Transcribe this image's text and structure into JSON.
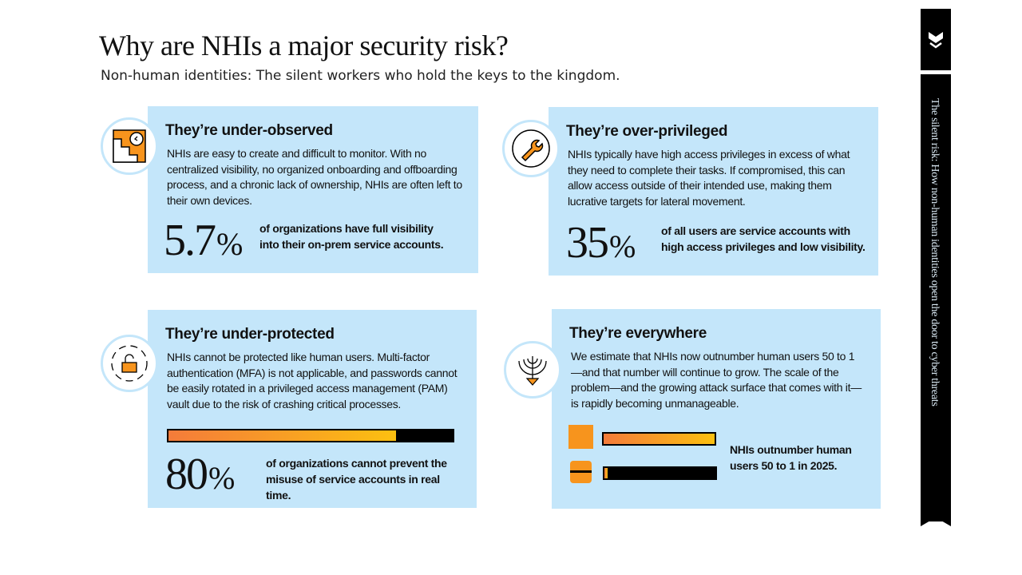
{
  "header": {
    "title": "Why are NHIs a major security risk?",
    "subtitle": "Non-human identities: The silent workers who hold the keys to the kingdom."
  },
  "cards": [
    {
      "title": "They’re under-observed",
      "body": "NHIs are easy to create and difficult to monitor. With no centralized visibility, no organized onboarding and offboarding process, and a chronic lack of ownership, NHIs are often left to their own devices.",
      "stat_value": "5.7",
      "stat_unit": "%",
      "stat_text": "of organizations have full visibility into their on-prem service accounts.",
      "icon": "stairs-clock-icon"
    },
    {
      "title": "They’re over-privileged",
      "body": "NHIs typically have high access privileges in excess of what they need to complete their tasks. If compromised, this can allow access outside of their intended use, making them lucrative targets for lateral movement.",
      "stat_value": "35",
      "stat_unit": "%",
      "stat_text": "of all users are service accounts with high access privileges and low visibility.",
      "icon": "wrench-icon"
    },
    {
      "title": "They’re under-protected",
      "body": "NHIs cannot be protected like human users. Multi-factor authentication (MFA) is not applicable, and passwords cannot be easily rotated in a privileged access management (PAM) vault due to the risk of crashing critical processes.",
      "stat_value": "80",
      "stat_unit": "%",
      "stat_text": "of organizations cannot prevent the misuse of service accounts in real time.",
      "progress_percent": 80,
      "icon": "unlock-icon"
    },
    {
      "title": "They’re everywhere",
      "body": "We estimate that NHIs now outnumber human users 50 to 1—and that number will continue to grow. The scale of the problem—and the growing attack surface that comes with it—is rapidly becoming unmanageable.",
      "stat_text": "NHIs outnumber human users 50 to 1 in 2025.",
      "nhi_bar_percent": 100,
      "human_bar_percent": 2,
      "icon": "antenna-icon"
    }
  ],
  "sidebar": {
    "title": "The silent risk: How non-human identities open the door to cyber threats",
    "icon": "chevron-double-down-icon"
  },
  "colors": {
    "card_bg": "#c4e6fa",
    "orange": "#f7941d",
    "gradient_start": "#f47b3a",
    "gradient_end": "#fcc010"
  }
}
